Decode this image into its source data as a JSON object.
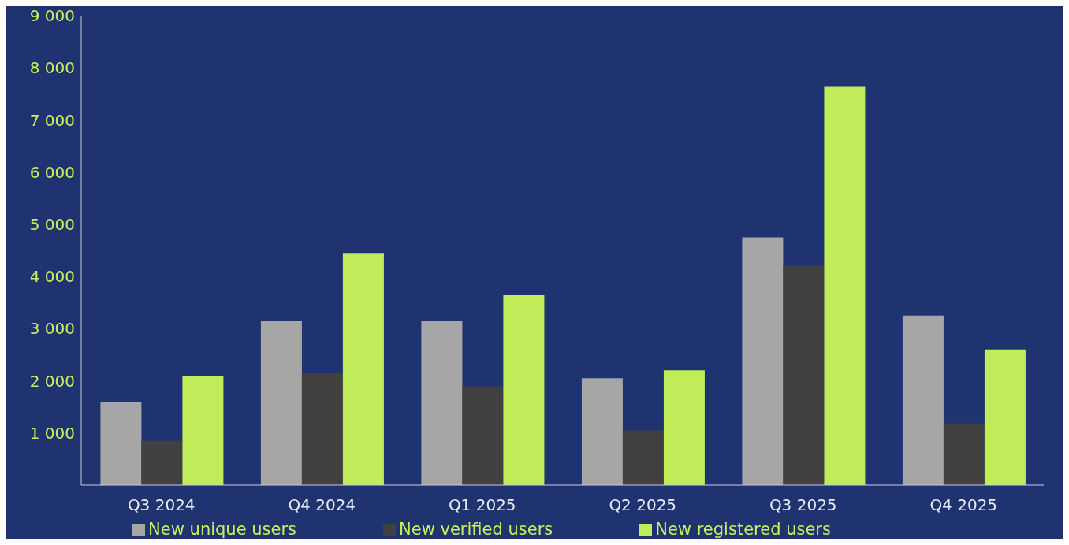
{
  "chart_data": {
    "type": "bar",
    "categories": [
      "Q3 2024",
      "Q4 2024",
      "Q1 2025",
      "Q2 2025",
      "Q3 2025",
      "Q4 2025"
    ],
    "series": [
      {
        "name": "New unique users",
        "color": "#a6a6a6",
        "values": [
          1600,
          3150,
          3150,
          2050,
          4750,
          3250
        ]
      },
      {
        "name": "New verified users",
        "color": "#404040",
        "values": [
          850,
          2150,
          1900,
          1050,
          4200,
          1180
        ]
      },
      {
        "name": "New registered users",
        "color": "#c0ec5a",
        "values": [
          2100,
          4450,
          3650,
          2200,
          7650,
          2600
        ]
      }
    ],
    "ylim": [
      0,
      9000
    ],
    "yticks": [
      {
        "value": 1000,
        "label": "1 000"
      },
      {
        "value": 2000,
        "label": "2 000"
      },
      {
        "value": 3000,
        "label": "3 000"
      },
      {
        "value": 4000,
        "label": "4 000"
      },
      {
        "value": 5000,
        "label": "5 000"
      },
      {
        "value": 6000,
        "label": "6 000"
      },
      {
        "value": 7000,
        "label": "7 000"
      },
      {
        "value": 8000,
        "label": "8 000"
      },
      {
        "value": 9000,
        "label": "9 000"
      }
    ],
    "grid": false,
    "legend": "bottom"
  }
}
